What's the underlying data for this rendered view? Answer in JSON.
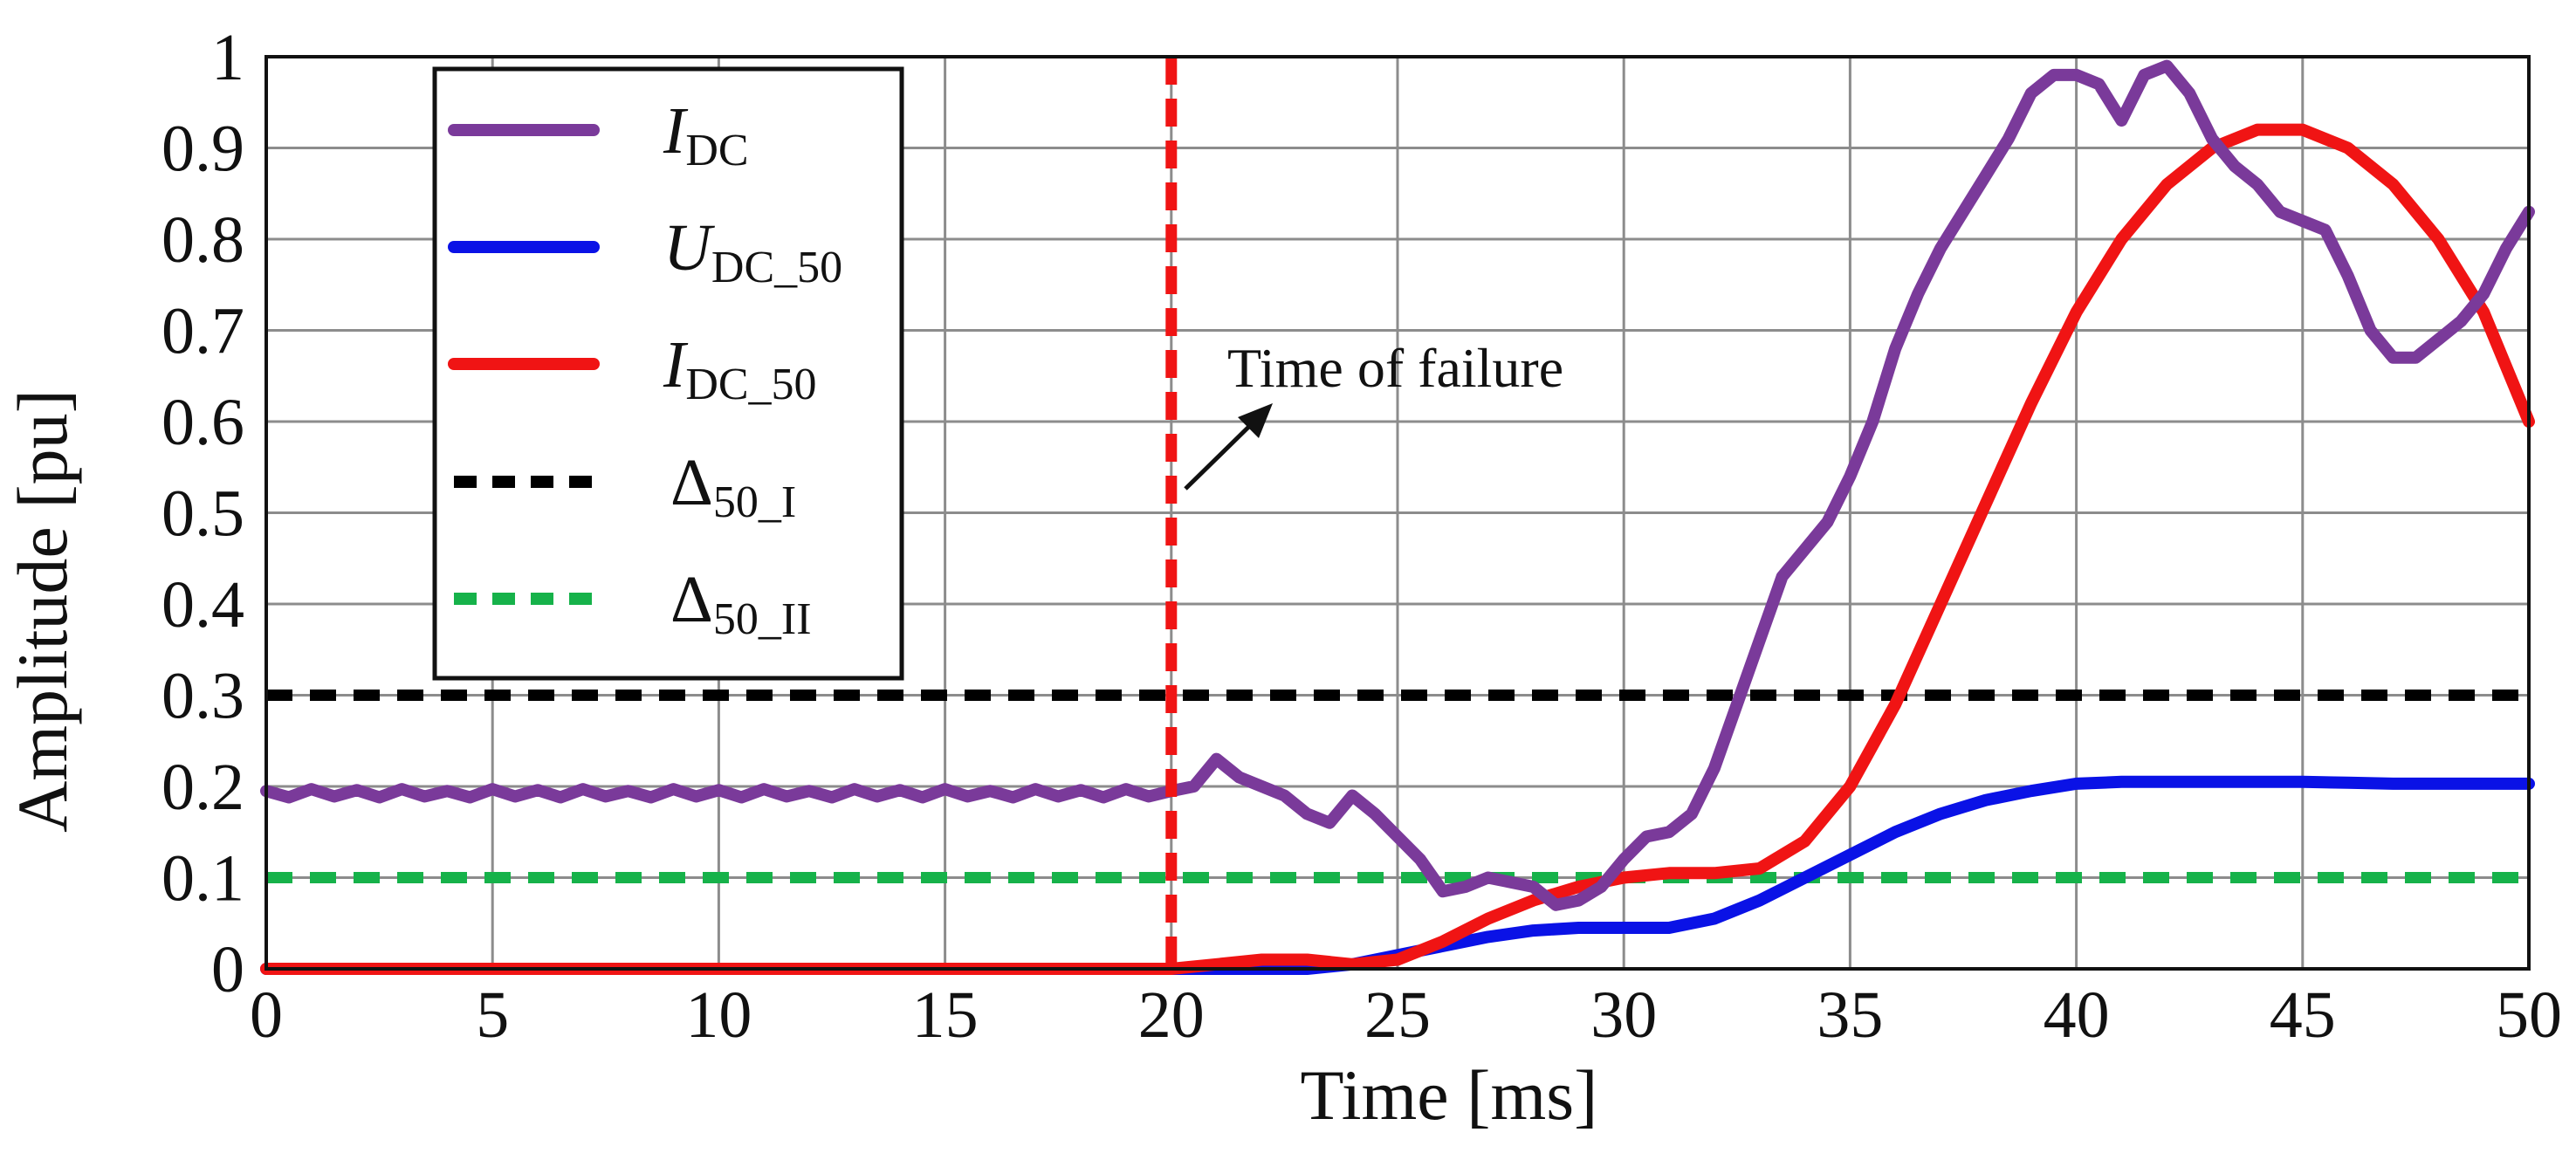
{
  "chart_data": {
    "type": "line",
    "title": "",
    "xlabel": "Time [ms]",
    "ylabel": "Amplitude [pu]",
    "xlim": [
      0,
      50
    ],
    "ylim": [
      0,
      1
    ],
    "grid": true,
    "legend_position": "top-left",
    "x_ticks": [
      "0",
      "5",
      "10",
      "15",
      "20",
      "25",
      "30",
      "35",
      "40",
      "45",
      "50"
    ],
    "y_ticks": [
      "0",
      "0.1",
      "0.2",
      "0.3",
      "0.4",
      "0.5",
      "0.6",
      "0.7",
      "0.8",
      "0.9",
      "1"
    ],
    "annotation": {
      "text": "Time of failure",
      "x": 20
    },
    "series": [
      {
        "name": "I_DC",
        "legend_main": "I",
        "legend_sub": "DC",
        "color": "#7a3a9a",
        "style": "solid",
        "x": [
          0,
          0.5,
          1,
          1.5,
          2,
          2.5,
          3,
          3.5,
          4,
          4.5,
          5,
          5.5,
          6,
          6.5,
          7,
          7.5,
          8,
          8.5,
          9,
          9.5,
          10,
          10.5,
          11,
          11.5,
          12,
          12.5,
          13,
          13.5,
          14,
          14.5,
          15,
          15.5,
          16,
          16.5,
          17,
          17.5,
          18,
          18.5,
          19,
          19.5,
          20,
          20.5,
          21,
          21.5,
          22,
          22.5,
          23,
          23.5,
          24,
          24.5,
          25,
          25.5,
          26,
          26.5,
          27,
          27.5,
          28,
          28.5,
          29,
          29.5,
          30,
          30.5,
          31,
          31.5,
          32,
          32.5,
          33,
          33.5,
          34,
          34.5,
          35,
          35.5,
          36,
          36.5,
          37,
          37.5,
          38,
          38.5,
          39,
          39.5,
          40,
          40.5,
          41,
          41.5,
          42,
          42.5,
          43,
          43.5,
          44,
          44.5,
          45,
          45.5,
          46,
          46.5,
          47,
          47.5,
          48,
          48.5,
          49,
          49.5,
          50
        ],
        "y": [
          0.195,
          0.188,
          0.197,
          0.189,
          0.196,
          0.188,
          0.197,
          0.189,
          0.195,
          0.188,
          0.197,
          0.189,
          0.196,
          0.188,
          0.197,
          0.189,
          0.195,
          0.188,
          0.197,
          0.189,
          0.196,
          0.188,
          0.197,
          0.189,
          0.195,
          0.188,
          0.197,
          0.189,
          0.196,
          0.188,
          0.197,
          0.189,
          0.195,
          0.188,
          0.197,
          0.189,
          0.196,
          0.188,
          0.197,
          0.189,
          0.195,
          0.2,
          0.23,
          0.21,
          0.2,
          0.19,
          0.17,
          0.16,
          0.19,
          0.17,
          0.145,
          0.12,
          0.085,
          0.09,
          0.1,
          0.095,
          0.09,
          0.07,
          0.075,
          0.09,
          0.12,
          0.145,
          0.15,
          0.17,
          0.22,
          0.29,
          0.36,
          0.43,
          0.46,
          0.49,
          0.54,
          0.6,
          0.68,
          0.74,
          0.79,
          0.83,
          0.87,
          0.91,
          0.96,
          0.98,
          0.98,
          0.97,
          0.93,
          0.98,
          0.99,
          0.96,
          0.91,
          0.88,
          0.86,
          0.83,
          0.82,
          0.81,
          0.76,
          0.7,
          0.67,
          0.67,
          0.69,
          0.71,
          0.74,
          0.79,
          0.83
        ]
      },
      {
        "name": "U_DC_50",
        "legend_main": "U",
        "legend_sub": "DC_50",
        "color": "#0a12e6",
        "style": "solid",
        "x": [
          0,
          20,
          21,
          22,
          23,
          24,
          25,
          26,
          27,
          28,
          29,
          30,
          31,
          32,
          33,
          34,
          35,
          36,
          37,
          38,
          39,
          40,
          41,
          42,
          43,
          44,
          45,
          46,
          47,
          48,
          49,
          50
        ],
        "y": [
          0,
          0,
          0,
          0,
          0,
          0.005,
          0.015,
          0.025,
          0.035,
          0.042,
          0.045,
          0.045,
          0.045,
          0.055,
          0.075,
          0.1,
          0.125,
          0.15,
          0.17,
          0.185,
          0.195,
          0.203,
          0.205,
          0.205,
          0.205,
          0.205,
          0.205,
          0.204,
          0.203,
          0.203,
          0.203,
          0.203
        ]
      },
      {
        "name": "I_DC_50",
        "legend_main": "I",
        "legend_sub": "DC_50",
        "color": "#f01414",
        "style": "solid",
        "x": [
          0,
          20,
          21,
          22,
          23,
          24,
          25,
          26,
          27,
          28,
          29,
          30,
          31,
          32,
          33,
          34,
          35,
          36,
          37,
          38,
          39,
          40,
          41,
          42,
          43,
          44,
          45,
          46,
          47,
          48,
          49,
          50
        ],
        "y": [
          0,
          0,
          0.005,
          0.01,
          0.01,
          0.005,
          0.01,
          0.03,
          0.055,
          0.075,
          0.09,
          0.1,
          0.105,
          0.105,
          0.11,
          0.14,
          0.2,
          0.29,
          0.4,
          0.51,
          0.62,
          0.72,
          0.8,
          0.86,
          0.9,
          0.92,
          0.92,
          0.9,
          0.86,
          0.8,
          0.72,
          0.6
        ]
      },
      {
        "name": "Δ50_I",
        "legend_main": "Δ",
        "legend_sub": "50_I",
        "color": "#000000",
        "style": "dashed",
        "x": [
          0,
          50
        ],
        "y": [
          0.3,
          0.3
        ]
      },
      {
        "name": "Δ50_II",
        "legend_main": "Δ",
        "legend_sub": "50_II",
        "color": "#16b24a",
        "style": "dashed",
        "x": [
          0,
          50
        ],
        "y": [
          0.1,
          0.1
        ]
      }
    ],
    "fault_marker": {
      "x": 20,
      "color": "#f01414",
      "style": "dashed"
    }
  }
}
